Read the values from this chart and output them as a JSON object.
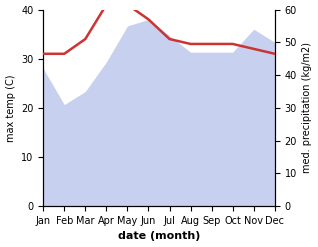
{
  "months": [
    "Jan",
    "Feb",
    "Mar",
    "Apr",
    "May",
    "Jun",
    "Jul",
    "Aug",
    "Sep",
    "Oct",
    "Nov",
    "Dec"
  ],
  "temp": [
    31,
    31,
    34,
    41,
    41,
    38,
    34,
    33,
    33,
    33,
    32,
    31
  ],
  "precip": [
    42,
    31,
    35,
    44,
    55,
    57,
    52,
    47,
    47,
    47,
    54,
    50
  ],
  "temp_color": "#cc3333",
  "precip_fill_color": "#c8d0f0",
  "ylabel_left": "max temp (C)",
  "ylabel_right": "med. precipitation (kg/m2)",
  "xlabel": "date (month)",
  "ylim_left": [
    0,
    40
  ],
  "ylim_right": [
    0,
    60
  ],
  "yticks_left": [
    0,
    10,
    20,
    30,
    40
  ],
  "yticks_right": [
    0,
    10,
    20,
    30,
    40,
    50,
    60
  ]
}
